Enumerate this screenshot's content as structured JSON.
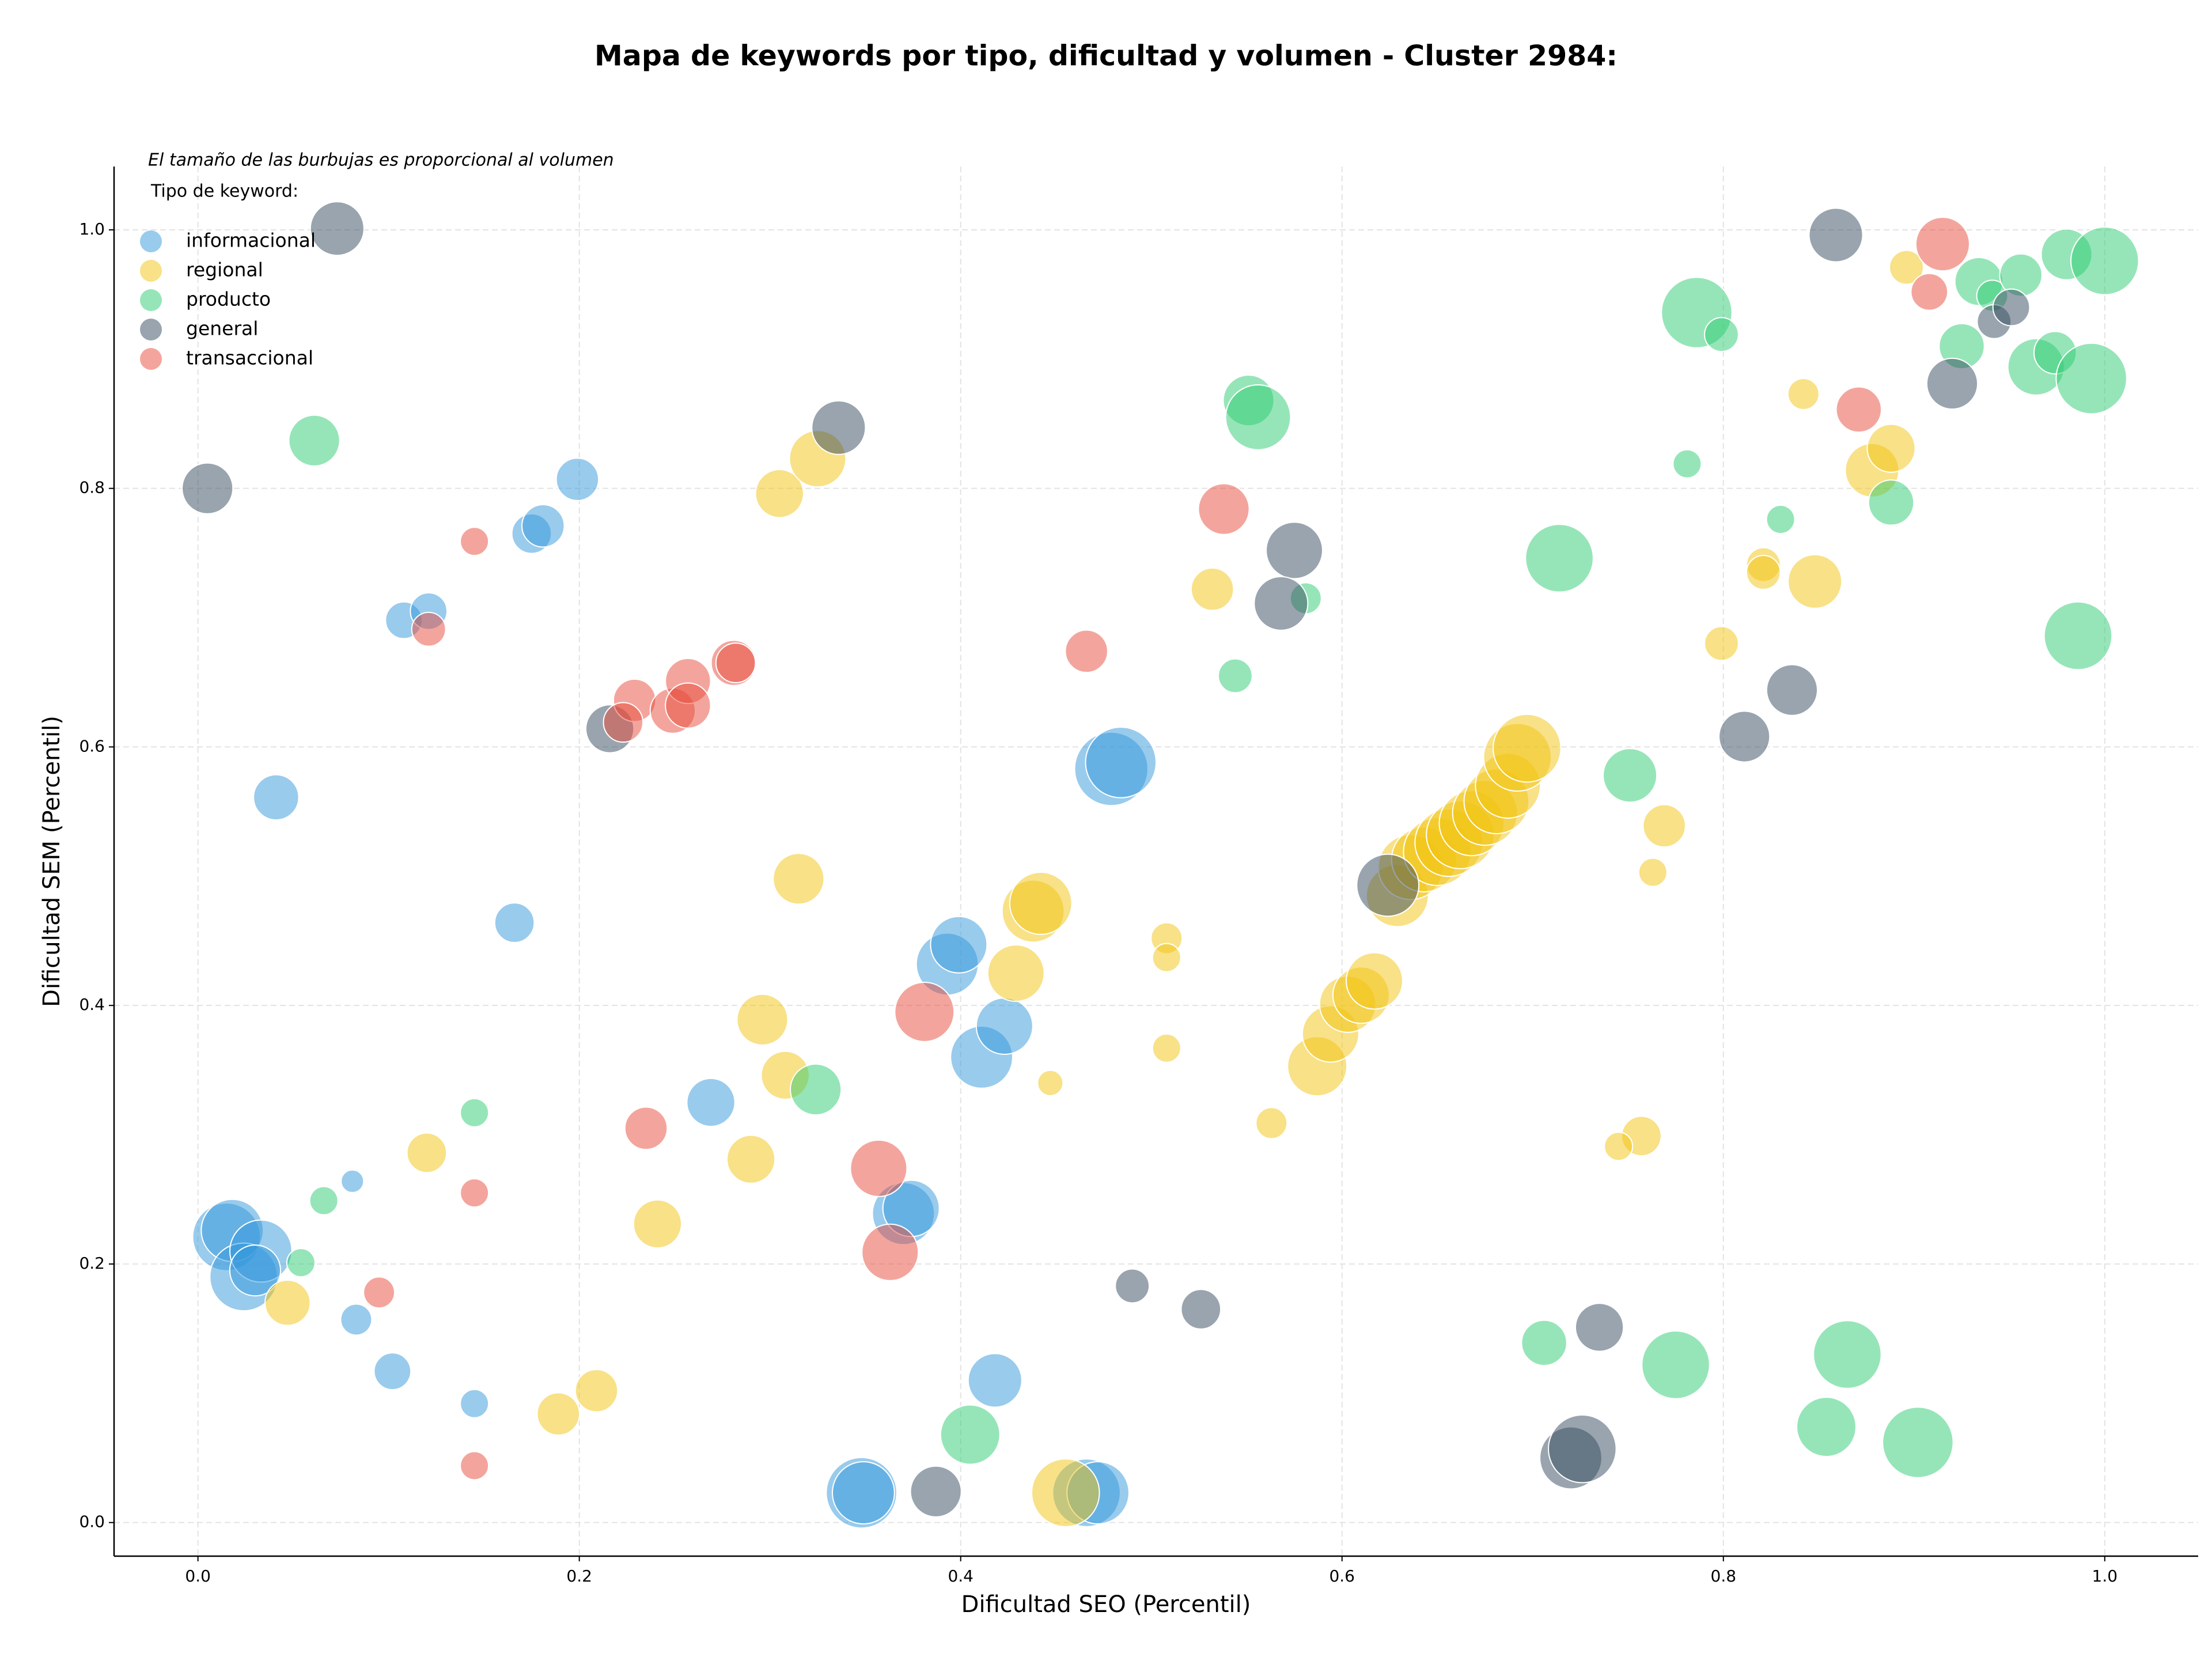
{
  "chart_data": {
    "type": "scatter",
    "title": "Mapa de keywords por tipo, dificultad y volumen - Cluster 2984:",
    "annotation": "El tamaño de las burbujas es proporcional al volumen",
    "legend_title": "Tipo de keyword:",
    "legend_position": "upper left",
    "xlabel": "Dificultad SEO (Percentil)",
    "ylabel": "Dificultad SEM (Percentil)",
    "xlim": [
      -0.044,
      1.049
    ],
    "ylim": [
      -0.026,
      1.049
    ],
    "xticks": [
      {
        "value": 0,
        "label": "0.0"
      },
      0.2,
      0.4,
      0.6,
      0.8,
      {
        "value": 1,
        "label": "1.0"
      }
    ],
    "yticks": [
      {
        "value": 0,
        "label": "0.0"
      },
      0.2,
      0.4,
      0.6,
      0.8,
      {
        "value": 1,
        "label": "1.0"
      }
    ],
    "grid": true,
    "alpha": 0.5,
    "series": [
      {
        "name": "informacional",
        "color": "#3498db",
        "x": [
          0.041,
          0.166,
          0.081,
          0.015,
          0.018,
          0.024,
          0.033,
          0.03,
          0.083,
          0.102,
          0.145,
          0.108,
          0.121,
          0.175,
          0.181,
          0.199,
          0.269,
          0.393,
          0.399,
          0.411,
          0.423,
          0.37,
          0.374,
          0.418,
          0.348,
          0.349,
          0.466,
          0.472,
          0.479,
          0.484
        ],
        "y": [
          0.561,
          0.464,
          0.264,
          0.221,
          0.226,
          0.19,
          0.21,
          0.195,
          0.157,
          0.117,
          0.092,
          0.698,
          0.705,
          0.765,
          0.771,
          0.807,
          0.325,
          0.432,
          0.447,
          0.36,
          0.384,
          0.239,
          0.243,
          0.11,
          0.023,
          0.023,
          0.023,
          0.023,
          0.583,
          0.588
        ],
        "sizes": [
          256,
          196,
          64,
          576,
          484,
          576,
          484,
          324,
          121,
          169,
          100,
          169,
          169,
          196,
          225,
          225,
          289,
          484,
          400,
          484,
          400,
          484,
          400,
          361,
          625,
          484,
          576,
          484,
          676,
          625
        ]
      },
      {
        "name": "regional",
        "color": "#f1c40f",
        "x": [
          0.305,
          0.325,
          0.315,
          0.296,
          0.308,
          0.29,
          0.241,
          0.12,
          0.047,
          0.189,
          0.209,
          0.429,
          0.438,
          0.442,
          0.447,
          0.508,
          0.508,
          0.508,
          0.455,
          0.532,
          0.563,
          0.587,
          0.594,
          0.603,
          0.61,
          0.617,
          0.629,
          0.636,
          0.643,
          0.65,
          0.656,
          0.662,
          0.668,
          0.675,
          0.681,
          0.687,
          0.692,
          0.697,
          0.769,
          0.763,
          0.757,
          0.745,
          0.799,
          0.821,
          0.821,
          0.848,
          0.842,
          0.878,
          0.888,
          0.896
        ],
        "y": [
          0.796,
          0.823,
          0.498,
          0.389,
          0.346,
          0.281,
          0.231,
          0.286,
          0.17,
          0.084,
          0.102,
          0.425,
          0.473,
          0.479,
          0.34,
          0.452,
          0.437,
          0.367,
          0.023,
          0.722,
          0.309,
          0.353,
          0.378,
          0.401,
          0.408,
          0.419,
          0.485,
          0.507,
          0.513,
          0.519,
          0.526,
          0.532,
          0.541,
          0.549,
          0.558,
          0.57,
          0.592,
          0.599,
          0.539,
          0.503,
          0.299,
          0.291,
          0.68,
          0.741,
          0.735,
          0.728,
          0.873,
          0.814,
          0.831,
          0.971
        ],
        "sizes": [
          289,
          400,
          324,
          324,
          289,
          289,
          289,
          196,
          256,
          225,
          225,
          400,
          484,
          484,
          81,
          121,
          100,
          100,
          576,
          225,
          121,
          441,
          400,
          400,
          400,
          400,
          484,
          529,
          529,
          576,
          576,
          576,
          529,
          529,
          529,
          529,
          576,
          576,
          225,
          100,
          196,
          100,
          144,
          144,
          144,
          361,
          121,
          361,
          289,
          144
        ]
      },
      {
        "name": "producto",
        "color": "#2ecc71",
        "x": [
          0.061,
          0.145,
          0.066,
          0.054,
          0.324,
          0.405,
          0.551,
          0.556,
          0.581,
          0.544,
          0.714,
          0.751,
          0.706,
          0.775,
          0.865,
          0.854,
          0.902,
          0.786,
          0.799,
          0.781,
          0.83,
          0.888,
          0.925,
          0.934,
          0.941,
          0.956,
          0.964,
          0.974,
          0.98,
          1.0,
          0.993,
          0.986
        ],
        "y": [
          0.837,
          0.317,
          0.249,
          0.201,
          0.335,
          0.068,
          0.868,
          0.855,
          0.715,
          0.655,
          0.746,
          0.578,
          0.139,
          0.122,
          0.13,
          0.074,
          0.062,
          0.936,
          0.919,
          0.819,
          0.776,
          0.789,
          0.91,
          0.96,
          0.949,
          0.965,
          0.894,
          0.905,
          0.981,
          0.976,
          0.885,
          0.686
        ],
        "sizes": [
          324,
          100,
          100,
          100,
          324,
          441,
          324,
          529,
          121,
          144,
          576,
          361,
          256,
          576,
          576,
          441,
          625,
          625,
          144,
          100,
          100,
          256,
          256,
          289,
          121,
          225,
          400,
          225,
          324,
          576,
          625,
          576
        ]
      },
      {
        "name": "general",
        "color": "#34495e",
        "x": [
          0.073,
          0.005,
          0.216,
          0.336,
          0.387,
          0.49,
          0.526,
          0.575,
          0.568,
          0.624,
          0.72,
          0.726,
          0.735,
          0.811,
          0.836,
          0.859,
          0.92,
          0.942,
          0.951
        ],
        "y": [
          1.001,
          0.8,
          0.614,
          0.847,
          0.024,
          0.183,
          0.165,
          0.752,
          0.711,
          0.493,
          0.05,
          0.057,
          0.151,
          0.608,
          0.644,
          0.996,
          0.881,
          0.929,
          0.94
        ],
        "sizes": [
          361,
          324,
          289,
          361,
          324,
          144,
          196,
          400,
          361,
          484,
          484,
          576,
          289,
          324,
          324,
          361,
          324,
          144,
          169
        ]
      },
      {
        "name": "transaccional",
        "color": "#e74c3c",
        "x": [
          0.145,
          0.121,
          0.229,
          0.223,
          0.249,
          0.257,
          0.257,
          0.281,
          0.282,
          0.235,
          0.145,
          0.095,
          0.145,
          0.381,
          0.357,
          0.363,
          0.466,
          0.538,
          0.871,
          0.915,
          0.908
        ],
        "y": [
          0.759,
          0.691,
          0.636,
          0.619,
          0.628,
          0.651,
          0.632,
          0.665,
          0.665,
          0.305,
          0.255,
          0.178,
          0.044,
          0.395,
          0.274,
          0.209,
          0.674,
          0.784,
          0.861,
          0.989,
          0.952
        ],
        "sizes": [
          100,
          144,
          225,
          196,
          256,
          256,
          256,
          256,
          196,
          225,
          100,
          121,
          100,
          441,
          400,
          400,
          225,
          324,
          256,
          361,
          169
        ]
      }
    ]
  }
}
